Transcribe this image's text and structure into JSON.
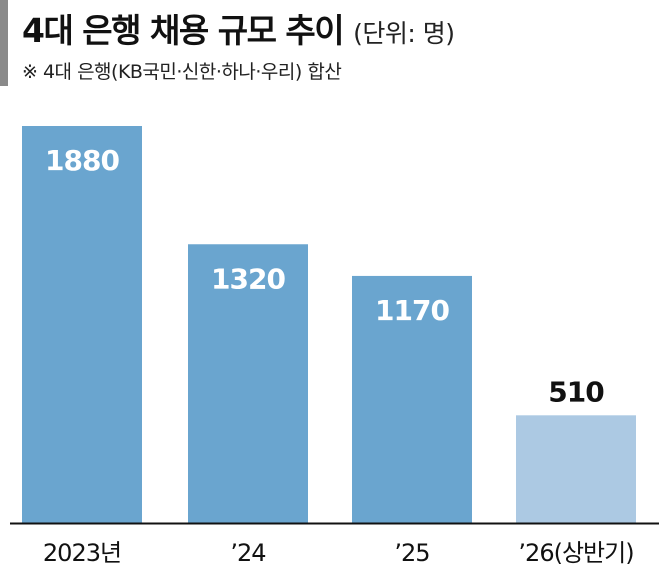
{
  "header": {
    "title": "4대 은행 채용 규모 추이",
    "unit": "(단위: 명)",
    "note": "※ 4대 은행(KB국민·신한·하나·우리) 합산"
  },
  "colors": {
    "bar": "#6aa5cf",
    "bar_highlight": "#acc9e3",
    "axis": "#111111"
  },
  "chart_data": {
    "type": "bar",
    "categories": [
      "2023년",
      "’24",
      "’25",
      "’26(상반기)"
    ],
    "values": [
      1880,
      1320,
      1170,
      510
    ],
    "ylim": [
      0,
      1880
    ],
    "title": "4대 은행 채용 규모 추이",
    "xlabel": "",
    "ylabel": "",
    "grid": false,
    "legend": "none"
  }
}
